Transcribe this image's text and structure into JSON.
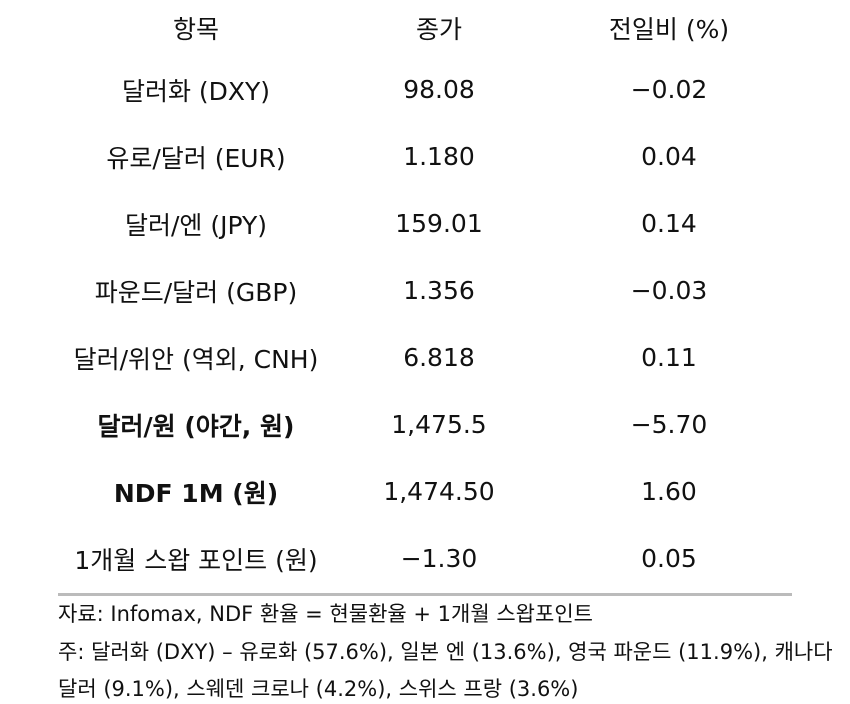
{
  "table": {
    "header": [
      "항목",
      "종가",
      "전일비 (%)"
    ],
    "rows": [
      [
        "달러화 (DXY)",
        "98.08",
        "−0.02"
      ],
      [
        "유로/달러 (EUR)",
        "1.180",
        "0.04"
      ],
      [
        "달러/엔 (JPY)",
        "159.01",
        "0.14"
      ],
      [
        "파운드/달러 (GBP)",
        "1.356",
        "−0.03"
      ],
      [
        "달러/위안 (역외, CNH)",
        "6.818",
        "0.11"
      ],
      [
        "달러/원 (야간, 원)",
        "1,475.5",
        "−5.70"
      ],
      [
        "NDF 1M (원)",
        "1,474.50",
        "1.60"
      ],
      [
        "1개월 스왑 포인트 (원)",
        "−1.30",
        "0.05"
      ]
    ]
  },
  "notes": {
    "source": "자료: Infomax, NDF 환율 = 현물환율 + 1개월 스왑포인트",
    "note": "주: 달러화 (DXY) – 유로화 (57.6%), 일본 엔 (13.6%), 영국 파운드 (11.9%), 캐나다 달러 (9.1%), 스웨덴 크로나 (4.2%), 스위스 프랑 (3.6%)"
  }
}
